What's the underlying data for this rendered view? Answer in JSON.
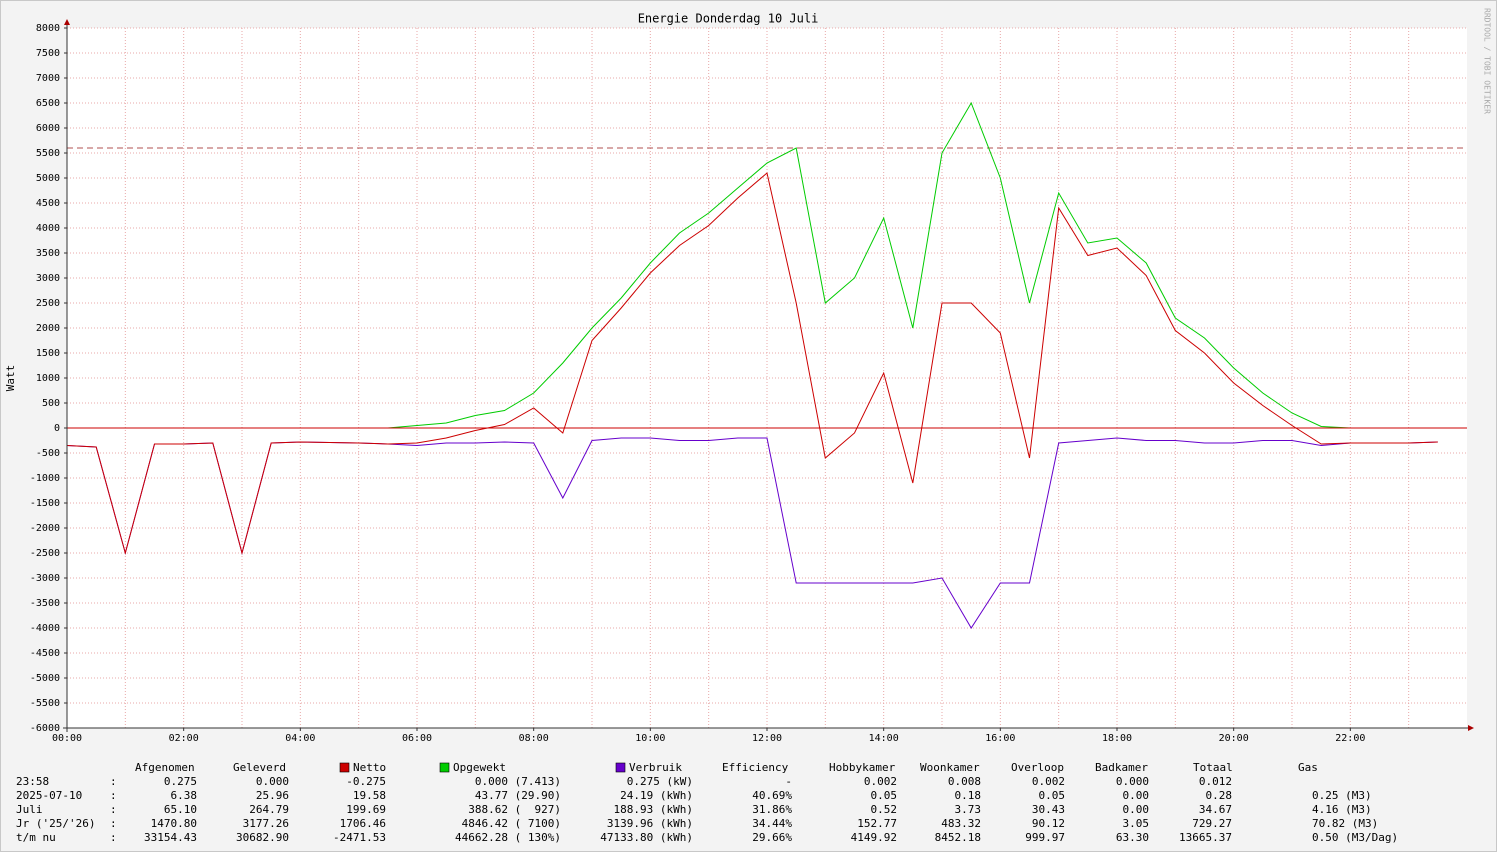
{
  "chart_data": {
    "type": "line",
    "title": "Energie Donderdag 10 Juli",
    "y_label": "Watt",
    "watermark": "RRDTOOL / TOBI OETIKER",
    "categories": [
      "00:00",
      null,
      null,
      null,
      "02:00",
      null,
      null,
      null,
      "04:00",
      null,
      null,
      null,
      "06:00",
      null,
      null,
      null,
      "08:00",
      null,
      null,
      null,
      "10:00",
      null,
      null,
      null,
      "12:00",
      null,
      null,
      null,
      "14:00",
      null,
      null,
      null,
      "16:00",
      null,
      null,
      null,
      "18:00",
      null,
      null,
      null,
      "20:00",
      null,
      null,
      null,
      "22:00",
      null,
      null,
      null
    ],
    "ylim": [
      -6000,
      8000
    ],
    "yticks": [
      -6000,
      -5500,
      -5000,
      -4500,
      -4000,
      -3500,
      -3000,
      -2500,
      -2000,
      -1500,
      -1000,
      -500,
      0,
      500,
      1000,
      1500,
      2000,
      2500,
      3000,
      3500,
      4000,
      4500,
      5000,
      5500,
      6000,
      6500,
      7000,
      7500,
      8000
    ],
    "grid": true,
    "reference_line": 5600,
    "reference_color": "#b05050",
    "series": [
      {
        "name": "Netto",
        "color": "#cc0000",
        "values": [
          -350,
          -380,
          -2500,
          -320,
          -320,
          -300,
          -2500,
          -300,
          -280,
          -290,
          -300,
          -320,
          -300,
          -200,
          -50,
          70,
          400,
          -100,
          1750,
          2400,
          3100,
          3650,
          4050,
          4600,
          5100,
          2500,
          -600,
          -100,
          1100,
          -1100,
          2500,
          2500,
          1900,
          -600,
          4400,
          3450,
          3600,
          3050,
          1950,
          1500,
          900,
          450,
          50,
          -320,
          -300,
          -300,
          -300,
          -280
        ]
      },
      {
        "name": "Opgewekt",
        "color": "#00cc00",
        "values": [
          0,
          0,
          0,
          0,
          0,
          0,
          0,
          0,
          0,
          0,
          0,
          0,
          50,
          100,
          250,
          350,
          700,
          1300,
          2000,
          2600,
          3300,
          3900,
          4300,
          4800,
          5300,
          5600,
          2500,
          3000,
          4200,
          2000,
          5500,
          6500,
          5000,
          2500,
          4700,
          3700,
          3800,
          3300,
          2200,
          1800,
          1200,
          700,
          300,
          30,
          0,
          0,
          0,
          0
        ]
      },
      {
        "name": "Verbruik",
        "color": "#6600cc",
        "values": [
          -350,
          -380,
          -2500,
          -320,
          -320,
          -300,
          -2500,
          -300,
          -280,
          -290,
          -300,
          -320,
          -350,
          -300,
          -300,
          -280,
          -300,
          -1400,
          -250,
          -200,
          -200,
          -250,
          -250,
          -200,
          -200,
          -3100,
          -3100,
          -3100,
          -3100,
          -3100,
          -3000,
          -4000,
          -3100,
          -3100,
          -300,
          -250,
          -200,
          -250,
          -250,
          -300,
          -300,
          -250,
          -250,
          -350,
          -300,
          -300,
          -300,
          -280
        ]
      }
    ]
  },
  "legend_table": {
    "headers": [
      "Afgenomen",
      "Geleverd",
      "Efficiency",
      "Hobbykamer",
      "Woonkamer",
      "Overloop",
      "Badkamer",
      "Totaal",
      "Gas"
    ],
    "rows": [
      [
        "23:58",
        ":",
        "0.275",
        "0.000",
        "-0.275",
        "0.000 (7.413)",
        "0.275 (kW)",
        "-",
        "0.002",
        "0.008",
        "0.002",
        "0.000",
        "0.012"
      ],
      [
        "2025-07-10",
        ":",
        "6.38",
        "25.96",
        "19.58",
        "43.77 (29.90)",
        "24.19 (kWh)",
        "40.69%",
        "0.05",
        "0.18",
        "0.05",
        "0.00",
        "0.28",
        "0.25 (M3)"
      ],
      [
        "Juli",
        ":",
        "65.10",
        "264.79",
        "199.69",
        "388.62 (  927)",
        "188.93 (kWh)",
        "31.86%",
        "0.52",
        "3.73",
        "30.43",
        "0.00",
        "34.67",
        "4.16 (M3)"
      ],
      [
        "Jr ('25/'26)",
        ":",
        "1470.80",
        "3177.26",
        "1706.46",
        "4846.42 ( 7100)",
        "3139.96 (kWh)",
        "34.44%",
        "152.77",
        "483.32",
        "90.12",
        "3.05",
        "729.27",
        "70.82 (M3)"
      ],
      [
        "t/m nu",
        ":",
        "33154.43",
        "30682.90",
        "-2471.53",
        "44662.28 ( 130%)",
        "47133.80 (kWh)",
        "29.66%",
        "4149.92",
        "8452.18",
        "999.97",
        "63.30",
        "13665.37",
        "0.50 (M3/Dag)"
      ]
    ]
  }
}
